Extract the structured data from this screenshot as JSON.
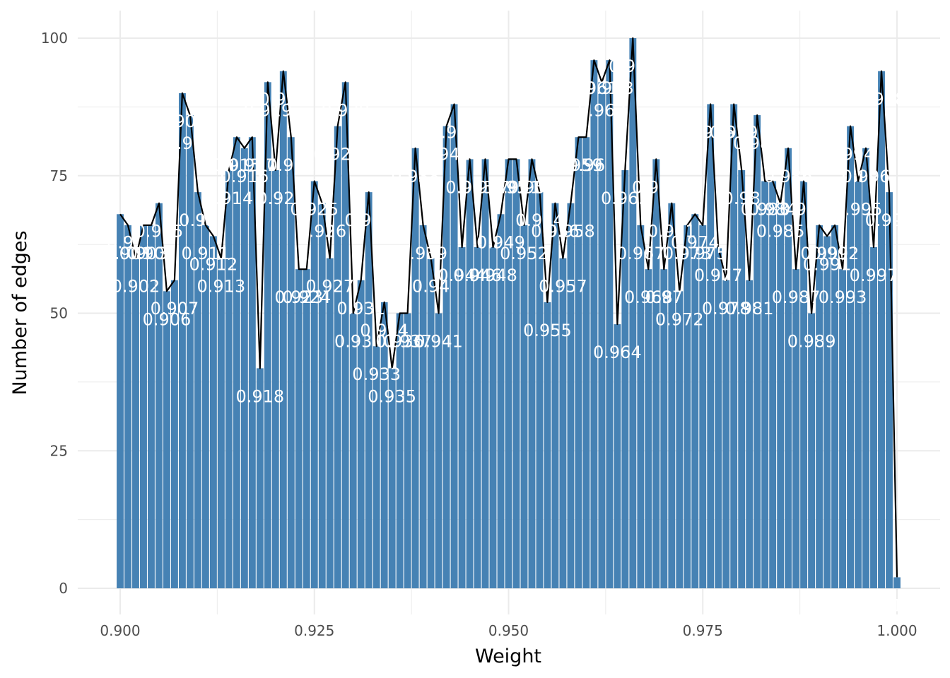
{
  "chart_data": {
    "type": "bar",
    "title": "",
    "xlabel": "Weight",
    "ylabel": "Number of edges",
    "xlim": [
      0.895,
      1.005
    ],
    "ylim": [
      0,
      100
    ],
    "x_ticks": [
      "0.900",
      "0.925",
      "0.950",
      "0.975",
      "1.000"
    ],
    "y_ticks": [
      "0",
      "25",
      "50",
      "75",
      "100"
    ],
    "grid": true,
    "legend": "none",
    "colors": {
      "bar": "#4682b4",
      "line": "#000000",
      "label": "#ffffff",
      "grid": "#ebebeb"
    },
    "x": [
      0.9,
      0.901,
      0.902,
      0.903,
      0.904,
      0.905,
      0.906,
      0.907,
      0.908,
      0.909,
      0.91,
      0.911,
      0.912,
      0.913,
      0.914,
      0.915,
      0.916,
      0.917,
      0.918,
      0.919,
      0.92,
      0.921,
      0.922,
      0.923,
      0.924,
      0.925,
      0.926,
      0.927,
      0.928,
      0.929,
      0.93,
      0.931,
      0.932,
      0.933,
      0.934,
      0.935,
      0.936,
      0.937,
      0.938,
      0.939,
      0.94,
      0.941,
      0.942,
      0.943,
      0.944,
      0.945,
      0.946,
      0.947,
      0.948,
      0.949,
      0.95,
      0.951,
      0.952,
      0.953,
      0.954,
      0.955,
      0.956,
      0.957,
      0.958,
      0.959,
      0.96,
      0.961,
      0.962,
      0.963,
      0.964,
      0.965,
      0.966,
      0.967,
      0.968,
      0.969,
      0.97,
      0.971,
      0.972,
      0.973,
      0.974,
      0.975,
      0.976,
      0.977,
      0.978,
      0.979,
      0.98,
      0.981,
      0.982,
      0.983,
      0.984,
      0.985,
      0.986,
      0.987,
      0.988,
      0.989,
      0.99,
      0.991,
      0.992,
      0.993,
      0.994,
      0.995,
      0.996,
      0.997,
      0.998,
      0.999,
      1.0
    ],
    "values": [
      68,
      66,
      60,
      66,
      66,
      70,
      54,
      56,
      90,
      86,
      72,
      66,
      64,
      60,
      76,
      82,
      80,
      82,
      40,
      92,
      76,
      94,
      82,
      58,
      58,
      74,
      70,
      60,
      84,
      92,
      50,
      56,
      72,
      44,
      52,
      40,
      50,
      50,
      80,
      66,
      60,
      50,
      84,
      88,
      62,
      78,
      62,
      78,
      62,
      68,
      78,
      78,
      66,
      78,
      72,
      52,
      70,
      60,
      70,
      82,
      82,
      96,
      92,
      96,
      48,
      76,
      100,
      66,
      58,
      78,
      58,
      70,
      54,
      66,
      68,
      66,
      88,
      62,
      56,
      88,
      76,
      56,
      86,
      74,
      74,
      70,
      80,
      58,
      74,
      50,
      66,
      64,
      66,
      58,
      84,
      74,
      80,
      62,
      94,
      72,
      2
    ],
    "labels": [
      "0.9",
      "0.901",
      "0.902",
      "0.903",
      "0.904",
      "0.905",
      "0.906",
      "0.907",
      "0.908",
      "0.909",
      "0.91",
      "0.911",
      "0.912",
      "0.913",
      "0.914",
      "0.915",
      "0.916",
      "0.917",
      "0.918",
      "0.919",
      "0.92",
      "0.921",
      "0.922",
      "0.923",
      "0.924",
      "0.925",
      "0.926",
      "0.927",
      "0.928",
      "0.929",
      "0.93",
      "0.931",
      "0.932",
      "0.933",
      "0.934",
      "0.935",
      "0.936",
      "0.937",
      "0.938",
      "0.939",
      "0.94",
      "0.941",
      "0.942",
      "0.943",
      "0.944",
      "0.945",
      "0.946",
      "0.947",
      "0.948",
      "0.949",
      "0.95",
      "0.951",
      "0.952",
      "0.953",
      "0.954",
      "0.955",
      "0.956",
      "0.957",
      "0.958",
      "0.959",
      "0.96",
      "0.961",
      "0.962",
      "0.963",
      "0.964",
      "0.965",
      "0.966",
      "0.967",
      "0.968",
      "0.969",
      "0.97",
      "0.971",
      "0.972",
      "0.973",
      "0.974",
      "0.975",
      "0.976",
      "0.977",
      "0.978",
      "0.979",
      "0.98",
      "0.981",
      "0.982",
      "0.983",
      "0.984",
      "0.985",
      "0.986",
      "0.987",
      "0.988",
      "0.989",
      "0.99",
      "0.991",
      "0.992",
      "0.993",
      "0.994",
      "0.995",
      "0.996",
      "0.997",
      "0.998",
      "0.999",
      "1"
    ]
  }
}
